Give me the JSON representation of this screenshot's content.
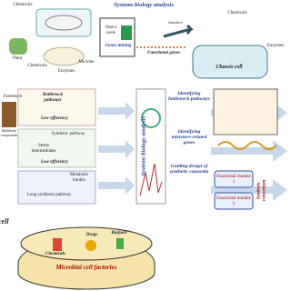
{
  "top": {
    "title": "Systems biology analysis",
    "chemicals_left": "Chemicals",
    "plant": "Plant",
    "chemicals_bottom": "Chemicals",
    "microbe": "Microbe",
    "enzymes_left": "Enzymes",
    "omics": "Omics tools",
    "genes_mining": "Genes mining",
    "functional_genes": "Functional genes",
    "introduce": "Introduce",
    "chassis": "Chassis cell",
    "chemicals_right": "Chemicals",
    "enzymes_right": "Enzymes"
  },
  "middle": {
    "feedstock": "Feedstock",
    "bottleneck": "Bottleneck pathways",
    "low_eff_1": "Low efficiency",
    "inhibitory": "Inhibitory compounds",
    "synthetic_pathway": "Synthetic pathway",
    "stress": "Stress intermediates",
    "low_eff_2": "Low efficiency",
    "burden": "Metabolic burden",
    "long_path": "Long synthesis pathway",
    "analysis": "Systems biology analysis",
    "step1": "Identifying bottleneck pathways",
    "step2": "Identifying tolerance-related genes",
    "step3": "Guiding design of synthetic consortia",
    "module1": "Functional module 1",
    "module2": "Functional module 2",
    "consortium": "Synthetic consortium"
  },
  "bottom": {
    "cell": "cell",
    "factories": "Microbial cell factories",
    "chemicals": "Chemicals",
    "drugs": "Drugs",
    "biofuels": "Biofuels"
  }
}
